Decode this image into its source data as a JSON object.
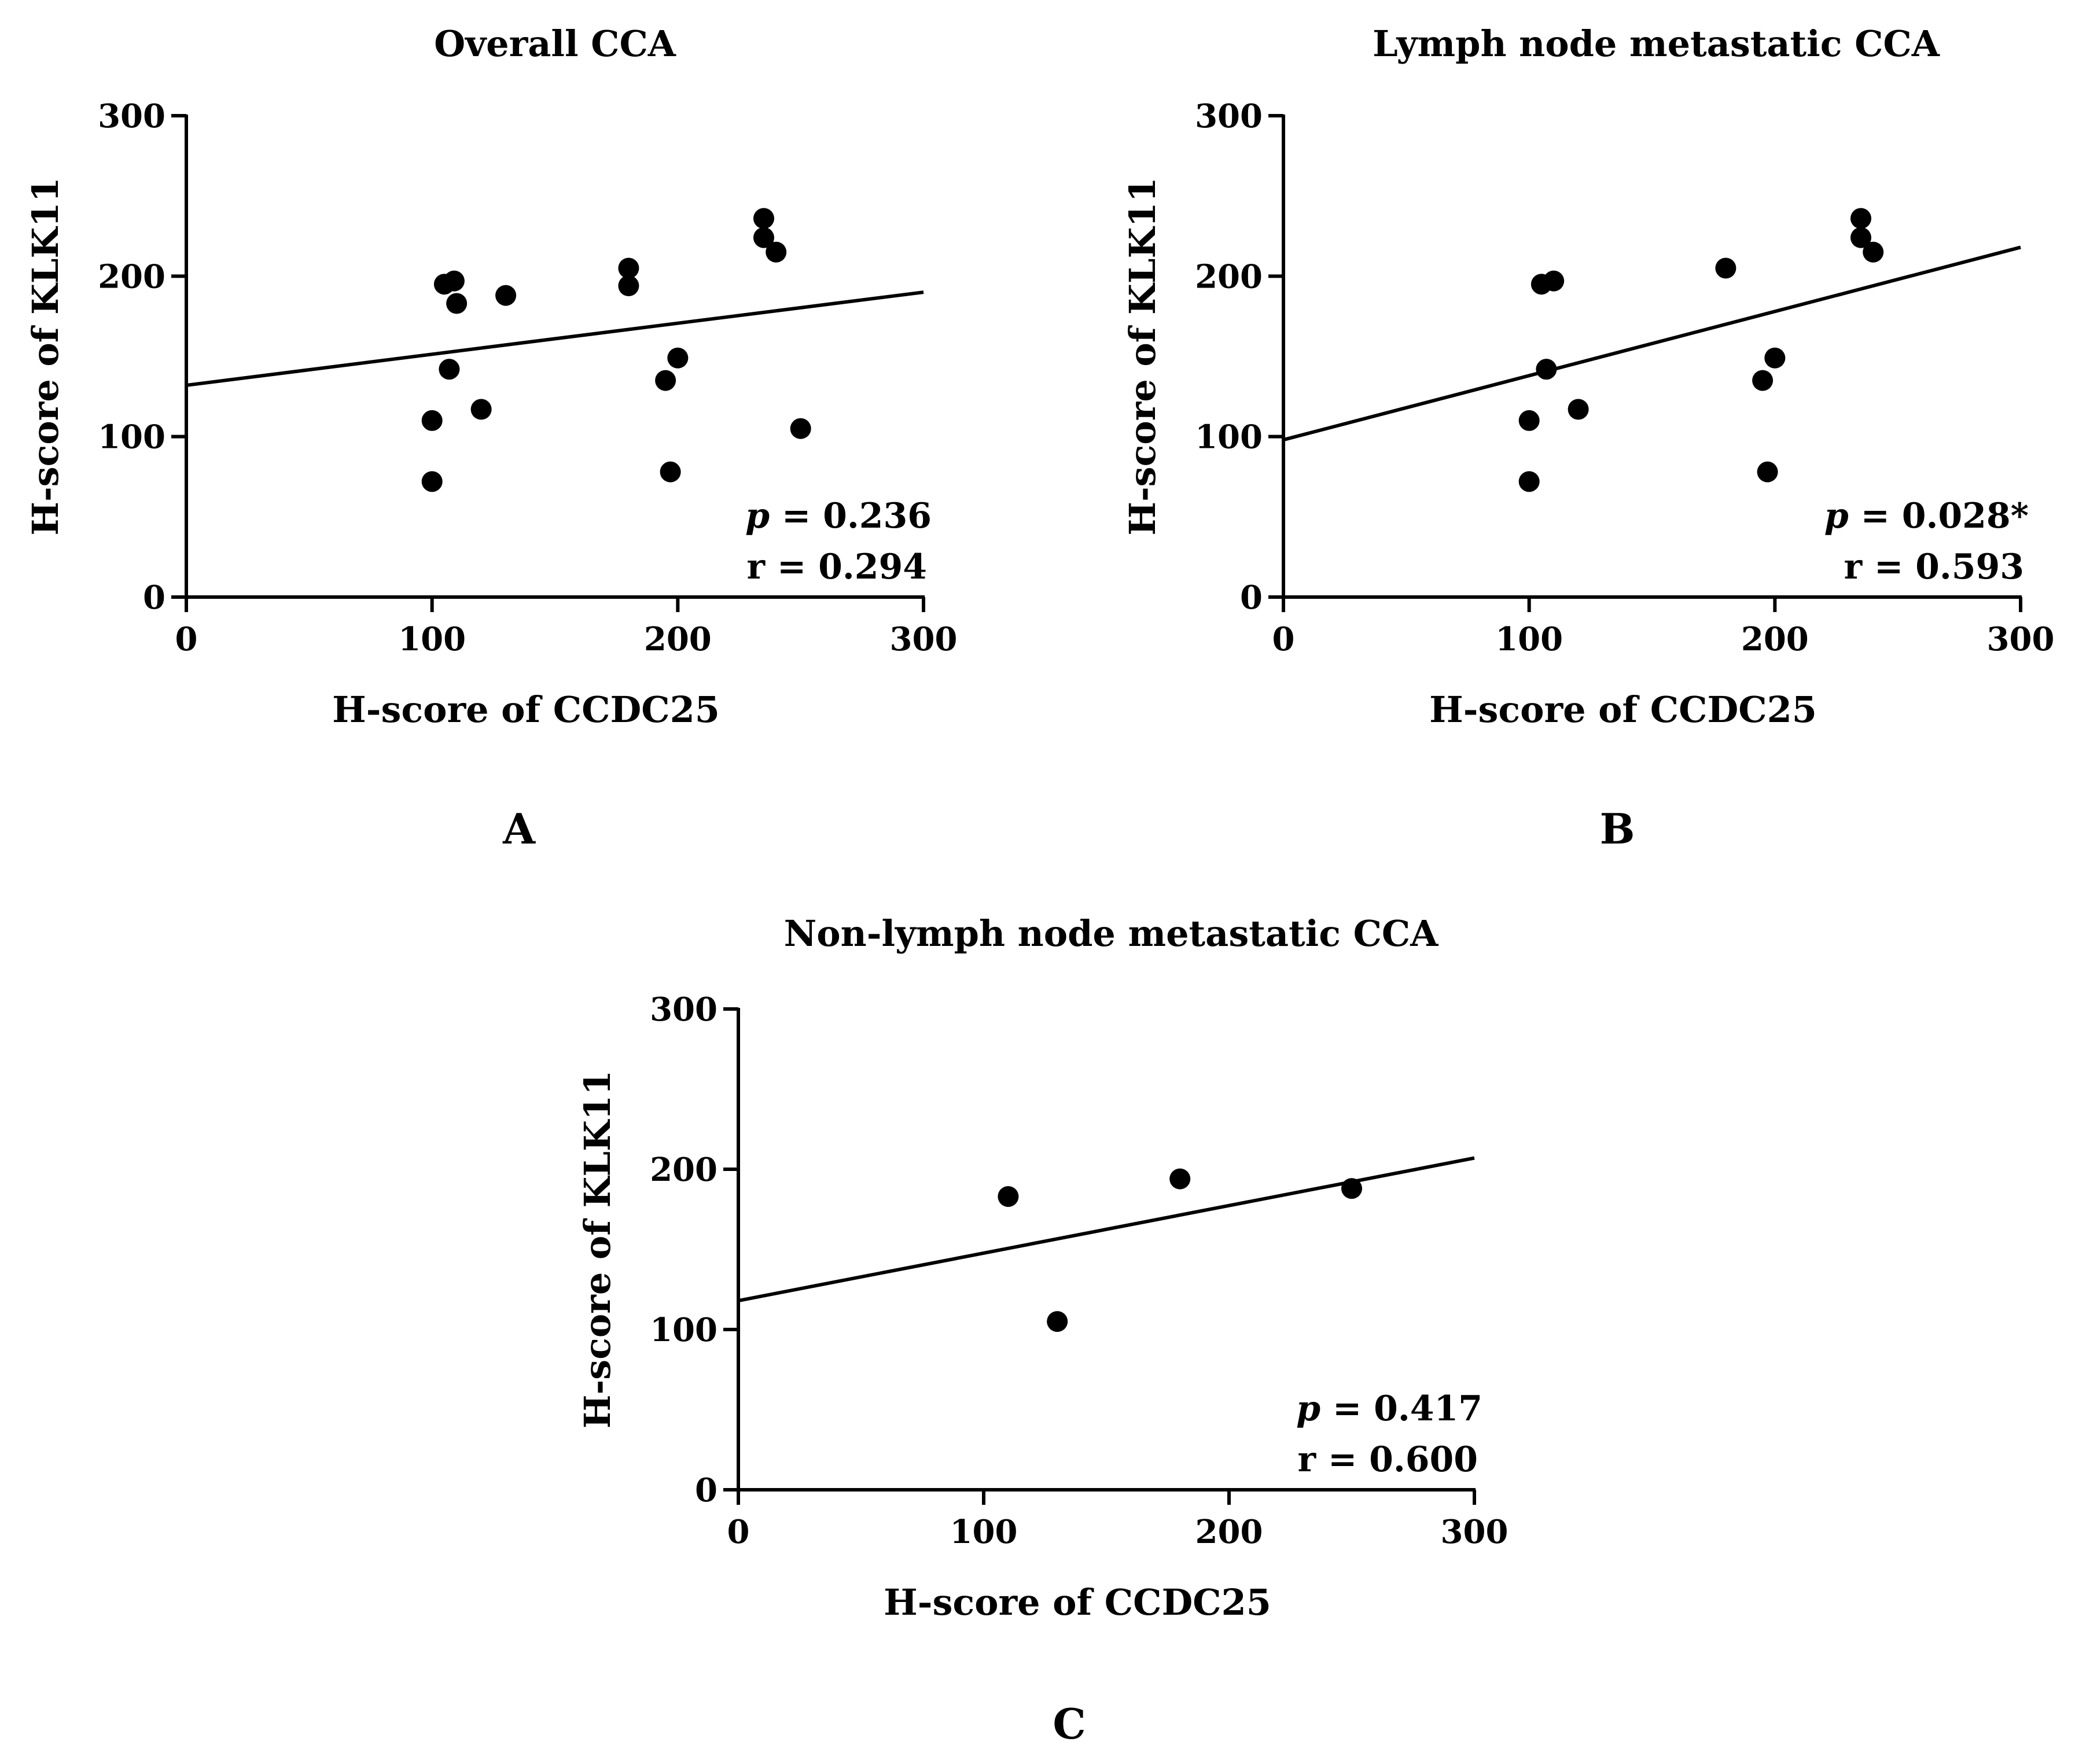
{
  "colors": {
    "marks": "#000000",
    "background": "#ffffff"
  },
  "chart_data": [
    {
      "panel": "A",
      "type": "scatter",
      "title": "Overall CCA",
      "xlabel": "H-score of CCDC25",
      "ylabel": "H-score of KLK11",
      "xlim": [
        0,
        300
      ],
      "ylim": [
        0,
        300
      ],
      "xticks": [
        "0",
        "100",
        "200",
        "300"
      ],
      "yticks": [
        "0",
        "100",
        "200",
        "300"
      ],
      "points": [
        {
          "x": 100,
          "y": 72
        },
        {
          "x": 100,
          "y": 110
        },
        {
          "x": 105,
          "y": 195
        },
        {
          "x": 107,
          "y": 142
        },
        {
          "x": 109,
          "y": 197
        },
        {
          "x": 110,
          "y": 183
        },
        {
          "x": 120,
          "y": 117
        },
        {
          "x": 130,
          "y": 188
        },
        {
          "x": 180,
          "y": 205
        },
        {
          "x": 180,
          "y": 194
        },
        {
          "x": 195,
          "y": 135
        },
        {
          "x": 197,
          "y": 78
        },
        {
          "x": 200,
          "y": 149
        },
        {
          "x": 235,
          "y": 236
        },
        {
          "x": 235,
          "y": 224
        },
        {
          "x": 240,
          "y": 215
        },
        {
          "x": 250,
          "y": 105
        }
      ],
      "fit": {
        "x": [
          0,
          300
        ],
        "y": [
          132,
          190
        ]
      },
      "stats": {
        "p_label": "p",
        "p_value": "= 0.236",
        "r_text": "r = 0.294"
      }
    },
    {
      "panel": "B",
      "type": "scatter",
      "title": "Lymph node metastatic CCA",
      "xlabel": "H-score of CCDC25",
      "ylabel": "H-score of KLK11",
      "xlim": [
        0,
        300
      ],
      "ylim": [
        0,
        300
      ],
      "xticks": [
        "0",
        "100",
        "200",
        "300"
      ],
      "yticks": [
        "0",
        "100",
        "200",
        "300"
      ],
      "points": [
        {
          "x": 100,
          "y": 72
        },
        {
          "x": 100,
          "y": 110
        },
        {
          "x": 105,
          "y": 195
        },
        {
          "x": 107,
          "y": 142
        },
        {
          "x": 110,
          "y": 197
        },
        {
          "x": 120,
          "y": 117
        },
        {
          "x": 180,
          "y": 205
        },
        {
          "x": 195,
          "y": 135
        },
        {
          "x": 197,
          "y": 78
        },
        {
          "x": 200,
          "y": 149
        },
        {
          "x": 235,
          "y": 236
        },
        {
          "x": 235,
          "y": 224
        },
        {
          "x": 240,
          "y": 215
        }
      ],
      "fit": {
        "x": [
          0,
          300
        ],
        "y": [
          98,
          218
        ]
      },
      "stats": {
        "p_label": "p",
        "p_value": "= 0.028*",
        "r_text": "r = 0.593"
      }
    },
    {
      "panel": "C",
      "type": "scatter",
      "title": "Non-lymph node metastatic CCA",
      "xlabel": "H-score of CCDC25",
      "ylabel": "H-score of KLK11",
      "xlim": [
        0,
        300
      ],
      "ylim": [
        0,
        300
      ],
      "xticks": [
        "0",
        "100",
        "200",
        "300"
      ],
      "yticks": [
        "0",
        "100",
        "200",
        "300"
      ],
      "points": [
        {
          "x": 110,
          "y": 183
        },
        {
          "x": 130,
          "y": 105
        },
        {
          "x": 180,
          "y": 194
        },
        {
          "x": 250,
          "y": 188
        }
      ],
      "fit": {
        "x": [
          0,
          300
        ],
        "y": [
          118,
          207
        ]
      },
      "stats": {
        "p_label": "p",
        "p_value": "= 0.417",
        "r_text": "r = 0.600"
      }
    }
  ]
}
